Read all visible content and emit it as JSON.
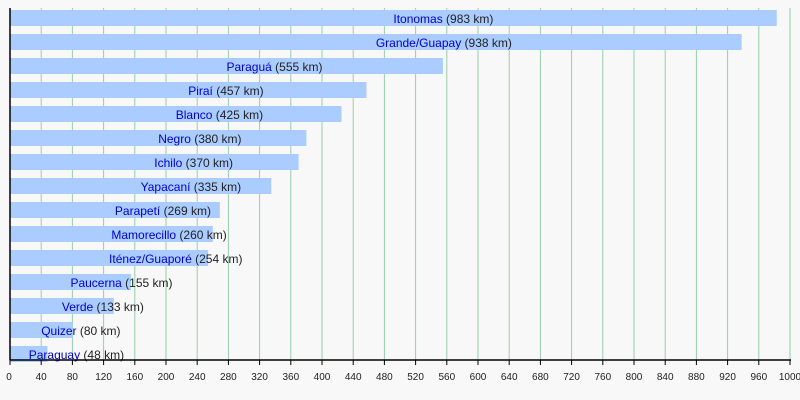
{
  "chart_data": {
    "type": "bar",
    "orientation": "horizontal",
    "categories": [
      "Itonomas",
      "Grande/Guapay",
      "Paraguá",
      "Piraí",
      "Blanco",
      "Negro",
      "Ichilo",
      "Yapacaní",
      "Parapetí",
      "Mamorecillo",
      "Iténez/Guaporé",
      "Paucerna",
      "Verde",
      "Quizer",
      "Paraguay"
    ],
    "values": [
      983,
      938,
      555,
      457,
      425,
      380,
      370,
      335,
      269,
      260,
      254,
      155,
      133,
      80,
      48
    ],
    "unit": "km",
    "xlim": [
      0,
      1000
    ],
    "xticks": [
      0,
      40,
      80,
      120,
      160,
      200,
      240,
      280,
      320,
      360,
      400,
      440,
      480,
      520,
      560,
      600,
      640,
      680,
      720,
      760,
      800,
      840,
      880,
      920,
      960,
      1000
    ],
    "grid": "vertical",
    "colors": {
      "bar": "#aaccff",
      "grid": "#99ccaa",
      "link": "#0000cc",
      "text": "#222222",
      "background": "#f8f8f8"
    }
  }
}
